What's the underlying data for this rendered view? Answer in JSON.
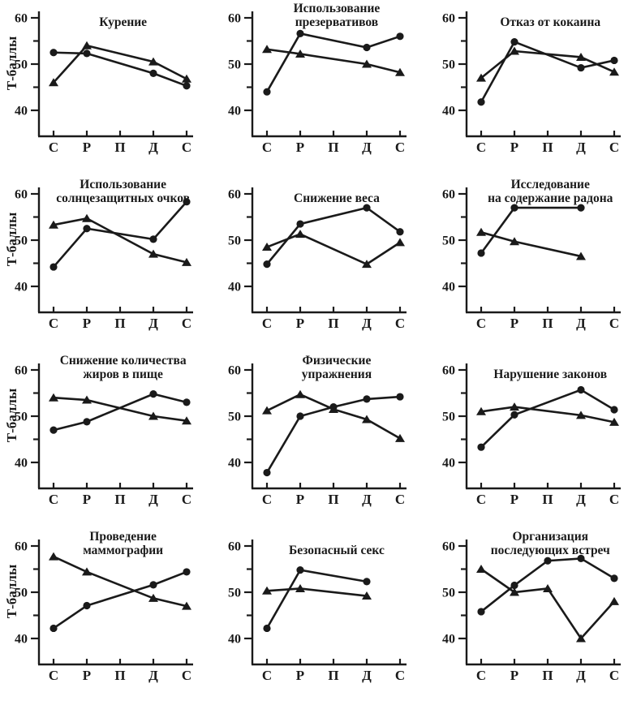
{
  "axes": {
    "y_label": "Т-баллы",
    "y_ticks_major": [
      60,
      50,
      40
    ],
    "y_ticks_minor": [
      55,
      45
    ],
    "x_categories": [
      "С",
      "Р",
      "П",
      "Д",
      "С"
    ],
    "ink_color": "#1a1a1a",
    "background": "#ffffff"
  },
  "chart_data": [
    {
      "type": "line",
      "title": "Курение",
      "show_y_axis_label": true,
      "x_categories": [
        "С",
        "Р",
        "П",
        "Д",
        "С"
      ],
      "y_ticks": [
        40,
        50,
        60
      ],
      "ylim": [
        36,
        61
      ],
      "series": [
        {
          "name": "circle-marker-series",
          "marker": "circle",
          "values": [
            52.5,
            52.3,
            null,
            48.0,
            45.3
          ]
        },
        {
          "name": "triangle-marker-series",
          "marker": "triangle",
          "values": [
            46.0,
            54.0,
            null,
            50.5,
            46.8
          ]
        }
      ]
    },
    {
      "type": "line",
      "title": "Использование\nпрезервативов",
      "show_y_axis_label": false,
      "x_categories": [
        "С",
        "Р",
        "П",
        "Д",
        "С"
      ],
      "y_ticks": [
        40,
        50,
        60
      ],
      "ylim": [
        36,
        61
      ],
      "series": [
        {
          "name": "circle-marker-series",
          "marker": "circle",
          "values": [
            44.0,
            56.6,
            null,
            53.6,
            56.0
          ]
        },
        {
          "name": "triangle-marker-series",
          "marker": "triangle",
          "values": [
            53.2,
            52.2,
            null,
            50.0,
            48.2
          ]
        }
      ]
    },
    {
      "type": "line",
      "title": "Отказ от кокаина",
      "show_y_axis_label": false,
      "x_categories": [
        "С",
        "Р",
        "П",
        "Д",
        "С"
      ],
      "y_ticks": [
        40,
        50,
        60
      ],
      "ylim": [
        36,
        61
      ],
      "series": [
        {
          "name": "circle-marker-series",
          "marker": "circle",
          "values": [
            41.8,
            54.8,
            null,
            49.2,
            50.8
          ]
        },
        {
          "name": "triangle-marker-series",
          "marker": "triangle",
          "values": [
            47.0,
            52.8,
            null,
            51.5,
            48.3
          ]
        }
      ]
    },
    {
      "type": "line",
      "title": "Использование\nсолнцезащитных очков",
      "show_y_axis_label": true,
      "x_categories": [
        "С",
        "Р",
        "П",
        "Д",
        "С"
      ],
      "y_ticks": [
        40,
        50,
        60
      ],
      "ylim": [
        36,
        61
      ],
      "series": [
        {
          "name": "circle-marker-series",
          "marker": "circle",
          "values": [
            44.2,
            52.5,
            null,
            50.2,
            58.3
          ]
        },
        {
          "name": "triangle-marker-series",
          "marker": "triangle",
          "values": [
            53.3,
            54.7,
            null,
            47.0,
            45.2
          ]
        }
      ]
    },
    {
      "type": "line",
      "title": "Снижение веса",
      "show_y_axis_label": false,
      "x_categories": [
        "С",
        "Р",
        "П",
        "Д",
        "С"
      ],
      "y_ticks": [
        40,
        50,
        60
      ],
      "ylim": [
        36,
        61
      ],
      "series": [
        {
          "name": "circle-marker-series",
          "marker": "circle",
          "values": [
            44.8,
            53.5,
            null,
            57.0,
            51.8
          ]
        },
        {
          "name": "triangle-marker-series",
          "marker": "triangle",
          "values": [
            48.5,
            51.3,
            null,
            44.8,
            49.5
          ]
        }
      ]
    },
    {
      "type": "line",
      "title": "Исследование\nна содержание радона",
      "show_y_axis_label": false,
      "x_categories": [
        "С",
        "Р",
        "П",
        "Д",
        "С"
      ],
      "y_ticks": [
        40,
        50,
        60
      ],
      "ylim": [
        36,
        61
      ],
      "series": [
        {
          "name": "circle-marker-series",
          "marker": "circle",
          "values": [
            47.2,
            57.0,
            null,
            57.0,
            null
          ]
        },
        {
          "name": "triangle-marker-series",
          "marker": "triangle",
          "values": [
            51.7,
            49.7,
            null,
            46.5,
            null
          ]
        }
      ]
    },
    {
      "type": "line",
      "title": "Снижение количества\nжиров в пище",
      "show_y_axis_label": true,
      "x_categories": [
        "С",
        "Р",
        "П",
        "Д",
        "С"
      ],
      "y_ticks": [
        40,
        50,
        60
      ],
      "ylim": [
        36,
        61
      ],
      "series": [
        {
          "name": "circle-marker-series",
          "marker": "circle",
          "values": [
            47.0,
            48.8,
            null,
            54.8,
            53.0
          ]
        },
        {
          "name": "triangle-marker-series",
          "marker": "triangle",
          "values": [
            54.0,
            53.5,
            null,
            50.0,
            49.0
          ]
        }
      ]
    },
    {
      "type": "line",
      "title": "Физические\nупражнения",
      "show_y_axis_label": false,
      "x_categories": [
        "С",
        "Р",
        "П",
        "Д",
        "С"
      ],
      "y_ticks": [
        40,
        50,
        60
      ],
      "ylim": [
        36,
        61
      ],
      "series": [
        {
          "name": "circle-marker-series",
          "marker": "circle",
          "values": [
            37.8,
            50.0,
            52.0,
            53.7,
            54.2
          ]
        },
        {
          "name": "triangle-marker-series",
          "marker": "triangle",
          "values": [
            51.2,
            54.7,
            51.5,
            49.3,
            45.2
          ]
        }
      ]
    },
    {
      "type": "line",
      "title": "Нарушение законов",
      "show_y_axis_label": false,
      "x_categories": [
        "С",
        "Р",
        "П",
        "Д",
        "С"
      ],
      "y_ticks": [
        40,
        50,
        60
      ],
      "ylim": [
        36,
        61
      ],
      "series": [
        {
          "name": "circle-marker-series",
          "marker": "circle",
          "values": [
            43.3,
            50.3,
            null,
            55.7,
            51.4
          ]
        },
        {
          "name": "triangle-marker-series",
          "marker": "triangle",
          "values": [
            51.0,
            52.0,
            null,
            50.2,
            48.7
          ]
        }
      ]
    },
    {
      "type": "line",
      "title": "Проведение\nмаммографии",
      "show_y_axis_label": true,
      "x_categories": [
        "С",
        "Р",
        "П",
        "Д",
        "С"
      ],
      "y_ticks": [
        40,
        50,
        60
      ],
      "ylim": [
        36,
        61
      ],
      "series": [
        {
          "name": "circle-marker-series",
          "marker": "circle",
          "values": [
            42.2,
            47.1,
            null,
            51.6,
            54.4
          ]
        },
        {
          "name": "triangle-marker-series",
          "marker": "triangle",
          "values": [
            57.7,
            54.4,
            null,
            48.7,
            47.0
          ]
        }
      ]
    },
    {
      "type": "line",
      "title": "Безопасный секс",
      "show_y_axis_label": false,
      "x_categories": [
        "С",
        "Р",
        "П",
        "Д",
        "С"
      ],
      "y_ticks": [
        40,
        50,
        60
      ],
      "ylim": [
        36,
        61
      ],
      "series": [
        {
          "name": "circle-marker-series",
          "marker": "circle",
          "values": [
            42.2,
            54.8,
            null,
            52.3,
            null
          ]
        },
        {
          "name": "triangle-marker-series",
          "marker": "triangle",
          "values": [
            50.3,
            50.8,
            null,
            49.2,
            null
          ]
        }
      ]
    },
    {
      "type": "line",
      "title": "Организация\nпоследующих встреч",
      "show_y_axis_label": false,
      "x_categories": [
        "С",
        "Р",
        "П",
        "Д",
        "С"
      ],
      "y_ticks": [
        40,
        50,
        60
      ],
      "ylim": [
        36,
        61
      ],
      "series": [
        {
          "name": "circle-marker-series",
          "marker": "circle",
          "values": [
            45.8,
            51.5,
            56.8,
            57.3,
            53.0
          ]
        },
        {
          "name": "triangle-marker-series",
          "marker": "triangle",
          "values": [
            55.0,
            50.0,
            50.8,
            40.0,
            48.0
          ]
        }
      ]
    }
  ]
}
